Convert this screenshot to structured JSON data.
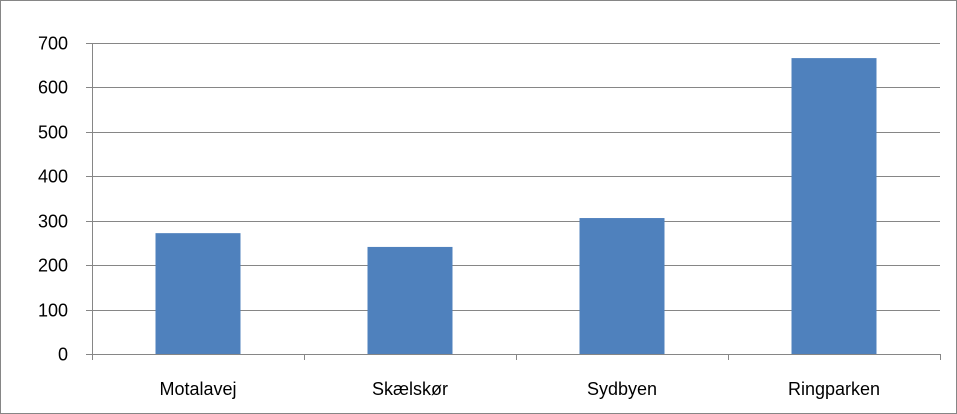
{
  "chart_data": {
    "type": "bar",
    "categories": [
      "Motalavej",
      "Skælskør",
      "Sydbyen",
      "Ringparken"
    ],
    "values": [
      272,
      241,
      306,
      666
    ],
    "ylim": [
      0,
      700
    ],
    "yticks": [
      "0",
      "100",
      "200",
      "300",
      "400",
      "500",
      "600",
      "700"
    ],
    "grid": true,
    "legend": "none",
    "colors": {
      "bar": "#4f81bd",
      "grid": "#868686",
      "axis": "#868686"
    }
  }
}
